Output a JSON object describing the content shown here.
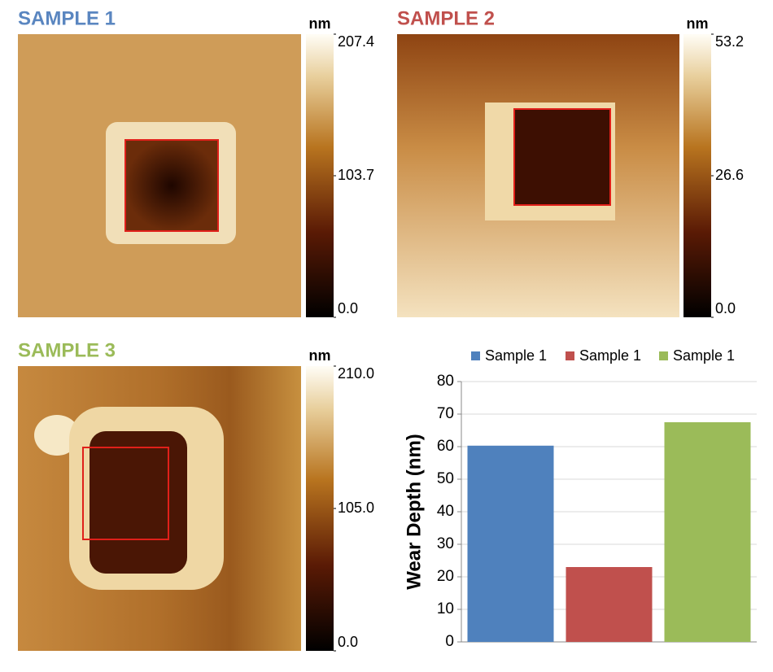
{
  "panels": [
    {
      "title": "SAMPLE 1",
      "color": "#5a86c0",
      "unit": "nm",
      "lim": [
        0,
        207.4
      ],
      "ticks": [
        {
          "value": 207.4,
          "label": "207.4"
        },
        {
          "value": 103.7,
          "label": "103.7"
        },
        {
          "value": 0,
          "label": "0.0"
        }
      ]
    },
    {
      "title": "SAMPLE 2",
      "color": "#c0504d",
      "unit": "nm",
      "lim": [
        0,
        53.2
      ],
      "ticks": [
        53.2,
        26.6,
        {
          "value": 0,
          "label": "0.0"
        }
      ]
    },
    {
      "title": "SAMPLE 3",
      "color": "#9bbb59",
      "unit": "nm",
      "lim": [
        0,
        210
      ],
      "ticks": [
        {
          "value": 210,
          "label": "210.0"
        },
        {
          "value": 105,
          "label": "105.0"
        },
        {
          "value": 0,
          "label": "0.0"
        }
      ]
    }
  ],
  "chart_data": {
    "type": "bar",
    "ylabel": "Wear Depth (nm)",
    "categories": [
      null
    ],
    "series": [
      {
        "name": "Sample 1",
        "color": "#4f81bd",
        "values": [
          60.3
        ]
      },
      {
        "name": "Sample 1",
        "color": "#c0504d",
        "values": [
          23
        ]
      },
      {
        "name": "Sample 1",
        "color": "#9bbb59",
        "values": [
          67.5
        ]
      }
    ],
    "ylim": [
      0,
      80
    ],
    "yticks": [
      0,
      10,
      20,
      30,
      40,
      50,
      60,
      70,
      80
    ],
    "grid": true,
    "legend": "top"
  }
}
